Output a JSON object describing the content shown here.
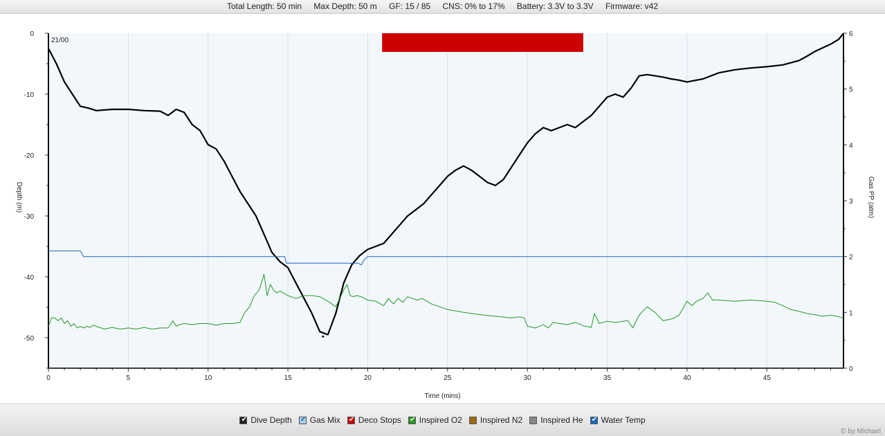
{
  "header": {
    "total_length": "Total Length: 50 min",
    "max_depth": "Max Depth: 50 m",
    "gf": "GF: 15 / 85",
    "cns": "CNS: 0% to 17%",
    "battery": "Battery: 3.3V to 3.3V",
    "firmware": "Firmware: v42"
  },
  "legend": {
    "items": [
      {
        "label": "Dive Depth",
        "color": "#222222",
        "checked": true
      },
      {
        "label": "Gas Mix",
        "color": "#a8d0f0",
        "checked": true
      },
      {
        "label": "Deco Stops",
        "color": "#cc0000",
        "checked": true
      },
      {
        "label": "Inspired O2",
        "color": "#229922",
        "checked": true
      },
      {
        "label": "Inspired N2",
        "color": "#a06a10",
        "checked": false
      },
      {
        "label": "Inspired He",
        "color": "#888888",
        "checked": false
      },
      {
        "label": "Water Temp",
        "color": "#1a66b8",
        "checked": true
      }
    ]
  },
  "credit": "© by Michael",
  "chart_data": {
    "type": "line",
    "xlabel": "Time (mins)",
    "ylabel": "Depth (m)",
    "y2label": "Gas PP (atm)",
    "annotation": "21/00",
    "xlim": [
      0,
      49.8
    ],
    "ylim": [
      -55,
      0
    ],
    "y2lim": [
      0,
      6
    ],
    "xticks": [
      "0",
      "5",
      "10",
      "15",
      "20",
      "25",
      "30",
      "35",
      "40",
      "45"
    ],
    "yticks": [
      "0",
      "-10",
      "-20",
      "-30",
      "-40",
      "-50"
    ],
    "y2ticks": [
      "0",
      "1",
      "2",
      "3",
      "4",
      "5",
      "6"
    ],
    "grid": true,
    "deco_stop": {
      "start": 20.9,
      "end": 33.5
    },
    "series": [
      {
        "name": "Dive Depth",
        "color": "#000000",
        "axis": "left",
        "x": [
          0,
          0.5,
          1,
          1.5,
          2,
          2.5,
          3,
          4,
          5,
          6,
          7,
          7.5,
          8,
          8.5,
          9,
          9.5,
          10,
          10.5,
          11,
          11.5,
          12,
          12.5,
          13,
          13.5,
          14,
          14.5,
          15,
          15.5,
          16,
          16.5,
          17,
          17.5,
          18,
          18.5,
          19,
          19.5,
          20,
          20.5,
          21,
          21.5,
          22,
          22.5,
          23,
          23.5,
          24,
          24.5,
          25,
          25.5,
          26,
          26.5,
          27,
          27.5,
          28,
          28.5,
          29,
          29.5,
          30,
          30.5,
          31,
          31.5,
          32,
          32.5,
          33,
          33.5,
          34,
          34.5,
          35,
          35.5,
          36,
          36.5,
          37,
          37.5,
          38,
          38.5,
          39,
          39.5,
          40,
          41,
          42,
          43,
          44,
          45,
          46,
          47,
          47.5,
          48,
          49,
          49.5,
          49.8
        ],
        "y": [
          -2.5,
          -5,
          -8,
          -10,
          -12,
          -12.3,
          -12.7,
          -12.5,
          -12.5,
          -12.7,
          -12.8,
          -13.5,
          -12.5,
          -13,
          -15,
          -16,
          -18.3,
          -19,
          -21,
          -23.5,
          -26,
          -28,
          -30,
          -33,
          -36,
          -37.5,
          -38.5,
          -41,
          -43.5,
          -46,
          -49,
          -49.5,
          -46,
          -41,
          -38,
          -36.5,
          -35.5,
          -35,
          -34.5,
          -33,
          -31.5,
          -30,
          -29,
          -28,
          -26.5,
          -25,
          -23.5,
          -22.5,
          -21.8,
          -22.5,
          -23.5,
          -24.5,
          -25,
          -24,
          -22,
          -20,
          -18,
          -16.5,
          -15.5,
          -16,
          -15.5,
          -15,
          -15.5,
          -14.5,
          -13.5,
          -12,
          -10.5,
          -10,
          -10.5,
          -9,
          -7,
          -6.8,
          -7,
          -7.2,
          -7.5,
          -7.7,
          -8,
          -7.5,
          -6.5,
          -6,
          -5.7,
          -5.5,
          -5.2,
          -4.5,
          -3.8,
          -3,
          -1.8,
          -1,
          0
        ],
        "min_marker": [
          17.2,
          -49.8
        ]
      },
      {
        "name": "Water Temp",
        "color": "#1a66b8",
        "axis": "right",
        "x": [
          0,
          2,
          2.2,
          14.8,
          14.9,
          19.4,
          19.6,
          19.8,
          20,
          49.8
        ],
        "y": [
          2.1,
          2.1,
          2.0,
          2.0,
          1.88,
          1.88,
          1.85,
          1.95,
          2.0,
          2.0
        ]
      },
      {
        "name": "Inspired O2",
        "color": "#229922",
        "axis": "right",
        "x": [
          0,
          0.2,
          0.4,
          0.6,
          0.8,
          1,
          1.2,
          1.4,
          1.6,
          1.8,
          2,
          2.2,
          2.4,
          2.6,
          2.8,
          3,
          3.5,
          4,
          4.5,
          5,
          5.5,
          6,
          6.5,
          7,
          7.5,
          7.8,
          8,
          8.2,
          8.5,
          9,
          9.5,
          10,
          10.5,
          11,
          11.5,
          12,
          12.3,
          12.6,
          12.9,
          13.2,
          13.5,
          13.7,
          13.9,
          14.1,
          14.3,
          14.5,
          15,
          15.5,
          16,
          16.5,
          17,
          17.5,
          18,
          18.5,
          18.7,
          18.9,
          19.1,
          19.3,
          19.6,
          20,
          20.5,
          21,
          21.3,
          21.6,
          21.9,
          22.2,
          22.5,
          22.8,
          23.1,
          23.4,
          23.7,
          24,
          24.5,
          25,
          26,
          27,
          28,
          29,
          29.5,
          29.8,
          30,
          30.5,
          31,
          31.3,
          31.6,
          32,
          32.5,
          33,
          33.5,
          34,
          34.2,
          34.5,
          35,
          35.5,
          36,
          36.3,
          36.6,
          37,
          37.5,
          38,
          38.5,
          39,
          39.2,
          39.5,
          40,
          40.3,
          40.6,
          41,
          41.3,
          41.6,
          42,
          43,
          44,
          45,
          45.5,
          46,
          46.5,
          47,
          47.5,
          48,
          48.5,
          49,
          49.5,
          49.8
        ],
        "y": [
          0.75,
          0.9,
          0.9,
          0.85,
          0.9,
          0.8,
          0.85,
          0.75,
          0.8,
          0.72,
          0.75,
          0.72,
          0.75,
          0.73,
          0.77,
          0.75,
          0.7,
          0.73,
          0.7,
          0.72,
          0.7,
          0.73,
          0.7,
          0.72,
          0.72,
          0.85,
          0.75,
          0.78,
          0.8,
          0.78,
          0.8,
          0.8,
          0.77,
          0.8,
          0.8,
          0.82,
          1.0,
          1.1,
          1.3,
          1.4,
          1.68,
          1.3,
          1.5,
          1.4,
          1.35,
          1.38,
          1.3,
          1.25,
          1.3,
          1.3,
          1.28,
          1.2,
          1.1,
          1.4,
          1.5,
          1.3,
          1.28,
          1.3,
          1.28,
          1.22,
          1.2,
          1.12,
          1.25,
          1.15,
          1.25,
          1.18,
          1.28,
          1.25,
          1.22,
          1.25,
          1.2,
          1.15,
          1.1,
          1.05,
          1.0,
          0.96,
          0.93,
          0.9,
          0.92,
          0.9,
          0.75,
          0.72,
          0.78,
          0.72,
          0.82,
          0.8,
          0.78,
          0.82,
          0.76,
          0.73,
          0.98,
          0.8,
          0.84,
          0.82,
          0.84,
          0.85,
          0.72,
          0.95,
          1.1,
          1.0,
          0.85,
          0.88,
          0.9,
          0.95,
          1.2,
          1.12,
          1.2,
          1.25,
          1.35,
          1.22,
          1.22,
          1.2,
          1.22,
          1.2,
          1.18,
          1.12,
          1.05,
          1.02,
          0.98,
          0.96,
          0.93,
          0.95,
          0.92,
          0.9
        ]
      }
    ]
  }
}
